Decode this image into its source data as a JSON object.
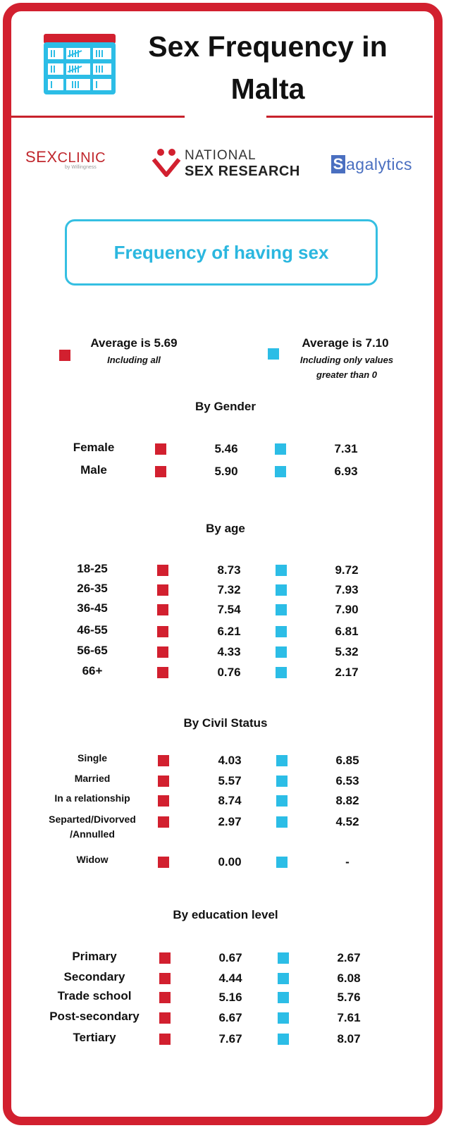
{
  "header": {
    "title": "Sex Frequency in Malta",
    "icon": "calendar-tally-icon"
  },
  "logos": {
    "sexclinic": {
      "main_a": "SEX",
      "main_b": "CLINIC",
      "sub": "by Willingness"
    },
    "nsr": {
      "line1": "NATIONAL",
      "line2": "SEX RESEARCH"
    },
    "sagalytics": {
      "initial": "S",
      "rest": "agalytics"
    }
  },
  "colors": {
    "frame": "#d2202f",
    "series_all": "#d2202f",
    "series_nonzero": "#2cbde6",
    "accent": "#2bb7df"
  },
  "chart_data": {
    "type": "table",
    "title": "Frequency of having sex",
    "series": [
      {
        "name": "Average is 5.69",
        "note": "Including all",
        "color": "#d2202f"
      },
      {
        "name": "Average is 7.10",
        "note": "Including only values greater than 0",
        "color": "#2cbde6"
      }
    ],
    "groups": [
      {
        "heading": "By Gender",
        "rows": [
          {
            "label": "Female",
            "all": "5.46",
            "nonzero": "7.31"
          },
          {
            "label": "Male",
            "all": "5.90",
            "nonzero": "6.93"
          }
        ]
      },
      {
        "heading": "By age",
        "rows": [
          {
            "label": "18-25",
            "all": "8.73",
            "nonzero": "9.72"
          },
          {
            "label": "26-35",
            "all": "7.32",
            "nonzero": "7.93"
          },
          {
            "label": "36-45",
            "all": "7.54",
            "nonzero": "7.90"
          },
          {
            "label": "46-55",
            "all": "6.21",
            "nonzero": "6.81"
          },
          {
            "label": "56-65",
            "all": "4.33",
            "nonzero": "5.32"
          },
          {
            "label": "66+",
            "all": "0.76",
            "nonzero": "2.17"
          }
        ]
      },
      {
        "heading": "By Civil Status",
        "rows": [
          {
            "label": "Single",
            "all": "4.03",
            "nonzero": "6.85"
          },
          {
            "label": "Married",
            "all": "5.57",
            "nonzero": "6.53"
          },
          {
            "label": "In a relationship",
            "all": "8.74",
            "nonzero": "8.82"
          },
          {
            "label": "Separted/Divorved",
            "label2": "/Annulled",
            "all": "2.97",
            "nonzero": "4.52"
          },
          {
            "label": "Widow",
            "all": "0.00",
            "nonzero": "-"
          }
        ]
      },
      {
        "heading": "By education level",
        "rows": [
          {
            "label": "Primary",
            "all": "0.67",
            "nonzero": "2.67"
          },
          {
            "label": "Secondary",
            "all": "4.44",
            "nonzero": "6.08"
          },
          {
            "label": "Trade school",
            "all": "5.16",
            "nonzero": "5.76"
          },
          {
            "label": "Post-secondary",
            "all": "6.67",
            "nonzero": "7.61"
          },
          {
            "label": "Tertiary",
            "all": "7.67",
            "nonzero": "8.07"
          }
        ]
      }
    ]
  }
}
